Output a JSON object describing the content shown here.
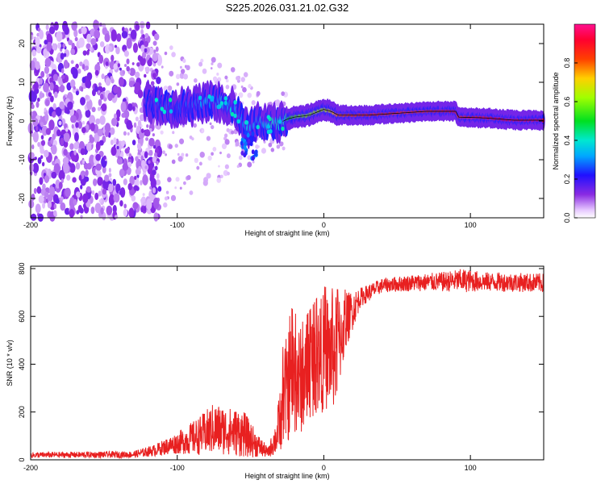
{
  "title": "S225.2026.031.21.02.G32",
  "colors": {
    "snr_line": "#e82020",
    "axis": "#000000"
  },
  "chart_data": [
    {
      "type": "heatmap",
      "name": "spectrogram",
      "xlabel": "Height of straight line (km)",
      "ylabel": "Frequency (Hz)",
      "xlim": [
        -200,
        150
      ],
      "ylim": [
        -25,
        25
      ],
      "xticks": [
        -200,
        -100,
        0,
        100
      ],
      "xtick_labels": [
        "-200",
        "-100",
        "0",
        "100"
      ],
      "yticks": [
        -20,
        -10,
        0,
        10,
        20
      ],
      "ytick_labels": [
        "-20",
        "-10",
        "0",
        "10",
        "20"
      ],
      "colorbar": {
        "label": "Normalized spectral amplitude",
        "range": [
          0,
          1
        ],
        "ticks": [
          0.0,
          0.2,
          0.4,
          0.6,
          0.8
        ],
        "tick_labels": [
          "0.0",
          "0.2",
          "0.4",
          "0.6",
          "0.8"
        ],
        "colormap": "rainbow (white-purple-blue-cyan-green-yellow-red-magenta)"
      },
      "noise_region_x": [
        -200,
        -120
      ],
      "signal_track": [
        {
          "x": -120,
          "f": 5.0,
          "amp": 0.18
        },
        {
          "x": -110,
          "f": 4.0,
          "amp": 0.22
        },
        {
          "x": -100,
          "f": 3.5,
          "amp": 0.25
        },
        {
          "x": -90,
          "f": 4.0,
          "amp": 0.24
        },
        {
          "x": -80,
          "f": 5.0,
          "amp": 0.28
        },
        {
          "x": -70,
          "f": 5.0,
          "amp": 0.3
        },
        {
          "x": -60,
          "f": 3.0,
          "amp": 0.3
        },
        {
          "x": -52,
          "f": -2.0,
          "amp": 0.3
        },
        {
          "x": -45,
          "f": 0.0,
          "amp": 0.32
        },
        {
          "x": -38,
          "f": -1.0,
          "amp": 0.35
        },
        {
          "x": -30,
          "f": -0.5,
          "amp": 0.35
        },
        {
          "x": -25,
          "f": 0.5,
          "amp": 0.45
        },
        {
          "x": -20,
          "f": 1.0,
          "amp": 0.55
        },
        {
          "x": -10,
          "f": 1.5,
          "amp": 0.6
        },
        {
          "x": 0,
          "f": 3.0,
          "amp": 0.62
        },
        {
          "x": 5,
          "f": 2.5,
          "amp": 0.7
        },
        {
          "x": 10,
          "f": 1.5,
          "amp": 0.8
        },
        {
          "x": 30,
          "f": 1.5,
          "amp": 0.85
        },
        {
          "x": 50,
          "f": 2.0,
          "amp": 0.85
        },
        {
          "x": 70,
          "f": 2.5,
          "amp": 0.85
        },
        {
          "x": 90,
          "f": 2.5,
          "amp": 0.9
        },
        {
          "x": 92,
          "f": 1.0,
          "amp": 0.85
        },
        {
          "x": 110,
          "f": 0.8,
          "amp": 0.9
        },
        {
          "x": 130,
          "f": 0.2,
          "amp": 0.95
        },
        {
          "x": 150,
          "f": 0.2,
          "amp": 0.95
        }
      ]
    },
    {
      "type": "line",
      "name": "snr",
      "xlabel": "Height of straight line (km)",
      "ylabel": "SNR (10 * v/v)",
      "xlim": [
        -200,
        150
      ],
      "ylim": [
        0,
        810
      ],
      "xticks": [
        -200,
        -100,
        0,
        100
      ],
      "xtick_labels": [
        "-200",
        "-100",
        "0",
        "100"
      ],
      "yticks": [
        0,
        200,
        400,
        600,
        800
      ],
      "ytick_labels": [
        "0",
        "200",
        "400",
        "600",
        "800"
      ],
      "envelope": [
        {
          "x": -200,
          "mean": 20,
          "spread": 12
        },
        {
          "x": -130,
          "mean": 22,
          "spread": 14
        },
        {
          "x": -115,
          "mean": 40,
          "spread": 25
        },
        {
          "x": -100,
          "mean": 70,
          "spread": 45
        },
        {
          "x": -85,
          "mean": 100,
          "spread": 80
        },
        {
          "x": -75,
          "mean": 130,
          "spread": 110
        },
        {
          "x": -65,
          "mean": 120,
          "spread": 100
        },
        {
          "x": -55,
          "mean": 110,
          "spread": 100
        },
        {
          "x": -45,
          "mean": 60,
          "spread": 50
        },
        {
          "x": -38,
          "mean": 30,
          "spread": 20
        },
        {
          "x": -32,
          "mean": 100,
          "spread": 80
        },
        {
          "x": -28,
          "mean": 250,
          "spread": 200
        },
        {
          "x": -22,
          "mean": 350,
          "spread": 260
        },
        {
          "x": -15,
          "mean": 330,
          "spread": 220
        },
        {
          "x": -8,
          "mean": 400,
          "spread": 220
        },
        {
          "x": 0,
          "mean": 450,
          "spread": 250
        },
        {
          "x": 8,
          "mean": 450,
          "spread": 240
        },
        {
          "x": 15,
          "mean": 580,
          "spread": 120
        },
        {
          "x": 25,
          "mean": 680,
          "spread": 40
        },
        {
          "x": 40,
          "mean": 730,
          "spread": 30
        },
        {
          "x": 60,
          "mean": 740,
          "spread": 35
        },
        {
          "x": 80,
          "mean": 745,
          "spread": 40
        },
        {
          "x": 95,
          "mean": 750,
          "spread": 50
        },
        {
          "x": 110,
          "mean": 745,
          "spread": 40
        },
        {
          "x": 150,
          "mean": 740,
          "spread": 40
        }
      ]
    }
  ]
}
